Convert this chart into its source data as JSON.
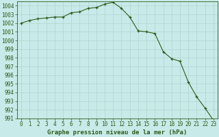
{
  "x": [
    0,
    1,
    2,
    3,
    4,
    5,
    6,
    7,
    8,
    9,
    10,
    11,
    12,
    13,
    14,
    15,
    16,
    17,
    18,
    19,
    20,
    21,
    22,
    23
  ],
  "y": [
    1002.0,
    1002.3,
    1002.5,
    1002.6,
    1002.7,
    1002.7,
    1003.2,
    1003.3,
    1003.7,
    1003.8,
    1004.2,
    1004.4,
    1003.7,
    1002.7,
    1001.1,
    1001.0,
    1000.8,
    998.7,
    997.9,
    997.6,
    995.2,
    993.5,
    992.2,
    990.8
  ],
  "line_color": "#2d5a1b",
  "marker_color": "#2d5a1b",
  "bg_color": "#c8eae8",
  "grid_color": "#b0d4d0",
  "axis_color": "#2d5a1b",
  "text_color": "#2d5a1b",
  "xlabel": "Graphe pression niveau de la mer (hPa)",
  "ylim": [
    991,
    1004.5
  ],
  "xlim": [
    -0.5,
    23.5
  ],
  "ytick_min": 991,
  "ytick_max": 1004,
  "ytick_step": 1,
  "xlabel_fontsize": 6.5,
  "tick_fontsize": 5.5
}
